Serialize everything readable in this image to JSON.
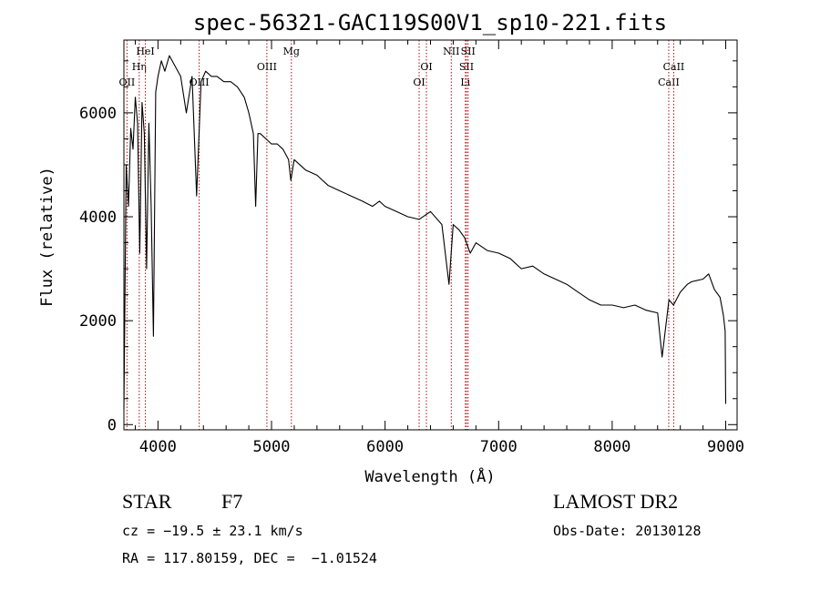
{
  "chart_data": {
    "type": "line",
    "title": "spec-56321-GAC119S00V1_sp10-221.fits",
    "xlabel": "Wavelength (Å)",
    "ylabel": "Flux (relative)",
    "xlim": [
      3700,
      9100
    ],
    "ylim": [
      -100,
      7400
    ],
    "x_ticks": [
      4000,
      5000,
      6000,
      7000,
      8000,
      9000
    ],
    "y_ticks": [
      0,
      2000,
      4000,
      6000
    ],
    "x_minor_step": 200,
    "y_minor_step": 500,
    "grid": false,
    "line_color": "#000000",
    "marker_color": "#aa1111",
    "series": [
      {
        "x": [
          3700,
          3720,
          3740,
          3760,
          3780,
          3800,
          3820,
          3840,
          3860,
          3880,
          3900,
          3920,
          3940,
          3960,
          3980,
          4000,
          4030,
          4060,
          4100,
          4150,
          4200,
          4250,
          4300,
          4340,
          4380,
          4420,
          4470,
          4520,
          4580,
          4640,
          4700,
          4760,
          4800,
          4840,
          4860,
          4880,
          4900,
          4950,
          5000,
          5050,
          5100,
          5150,
          5170,
          5200,
          5300,
          5400,
          5500,
          5600,
          5700,
          5800,
          5890,
          5950,
          6000,
          6100,
          6200,
          6300,
          6400,
          6500,
          6563,
          6600,
          6650,
          6700,
          6750,
          6800,
          6900,
          7000,
          7100,
          7200,
          7300,
          7400,
          7500,
          7600,
          7700,
          7800,
          7900,
          8000,
          8100,
          8200,
          8300,
          8400,
          8440,
          8500,
          8540,
          8600,
          8662,
          8700,
          8800,
          8850,
          8900,
          8950,
          8980,
          8995,
          9000
        ],
        "y": [
          300,
          5000,
          4200,
          5700,
          5300,
          6300,
          5800,
          3300,
          6200,
          5600,
          3000,
          5800,
          4200,
          1700,
          6400,
          6700,
          7000,
          6800,
          7100,
          6900,
          6700,
          6000,
          6700,
          4400,
          6600,
          6800,
          6700,
          6700,
          6600,
          6600,
          6500,
          6300,
          6000,
          5600,
          4200,
          5600,
          5600,
          5500,
          5400,
          5400,
          5300,
          5100,
          4700,
          5100,
          4900,
          4800,
          4600,
          4500,
          4400,
          4300,
          4200,
          4300,
          4200,
          4100,
          4000,
          3950,
          4100,
          3850,
          2700,
          3850,
          3750,
          3600,
          3300,
          3500,
          3350,
          3300,
          3200,
          3000,
          3050,
          2900,
          2800,
          2700,
          2550,
          2400,
          2300,
          2300,
          2250,
          2300,
          2200,
          2150,
          1300,
          2400,
          2300,
          2550,
          2700,
          2750,
          2800,
          2900,
          2600,
          2450,
          2100,
          1800,
          400
        ]
      }
    ],
    "line_markers": [
      {
        "wave": 3727,
        "label": "OII",
        "row": 3
      },
      {
        "wave": 3835,
        "label": "Hη",
        "row": 2
      },
      {
        "wave": 3889,
        "label": "HeI",
        "row": 1
      },
      {
        "wave": 4363,
        "label": "OIII",
        "row": 3
      },
      {
        "wave": 4959,
        "label": "OIII",
        "row": 2
      },
      {
        "wave": 5175,
        "label": "Mg",
        "row": 1
      },
      {
        "wave": 6300,
        "label": "OI",
        "row": 3
      },
      {
        "wave": 6364,
        "label": "OI",
        "row": 2
      },
      {
        "wave": 6583,
        "label": "NII",
        "row": 1
      },
      {
        "wave": 6707,
        "label": "Li",
        "row": 3
      },
      {
        "wave": 6717,
        "label": "SII",
        "row": 2
      },
      {
        "wave": 6731,
        "label": "SII",
        "row": 1
      },
      {
        "wave": 8498,
        "label": "CaII",
        "row": 3
      },
      {
        "wave": 8542,
        "label": "CaII",
        "row": 2
      }
    ]
  },
  "info": {
    "object_class": "STAR",
    "subclass": "F7",
    "survey": "LAMOST DR2",
    "redshift": "cz = −19.5 ± 23.1 km/s",
    "obs_date": "Obs-Date: 20130128",
    "coords": "RA = 117.80159, DEC =  −1.01524"
  }
}
